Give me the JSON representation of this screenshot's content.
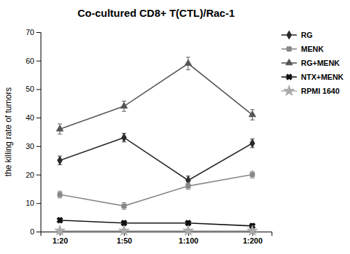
{
  "chart_data": {
    "type": "line",
    "title": "Co-cultured CD8+ T(CTL)/Rac-1",
    "ylabel": "the killing rate of tumors",
    "categories": [
      "1:20",
      "1:50",
      "1:100",
      "1:200"
    ],
    "ylim": [
      0,
      70
    ],
    "yticks": [
      0,
      10,
      20,
      30,
      40,
      50,
      60,
      70
    ],
    "grid": false,
    "legend": "right",
    "series": [
      {
        "name": "RG",
        "color": "#2a2a2a",
        "marker": "diamond",
        "line_style": "solid",
        "values": [
          25,
          33,
          18,
          31
        ],
        "errors": [
          1.5,
          1.5,
          1.5,
          1.5
        ]
      },
      {
        "name": "MENK",
        "color": "#888888",
        "marker": "square",
        "line_style": "solid",
        "values": [
          13,
          9,
          16,
          20
        ],
        "errors": [
          1.2,
          1.2,
          1.2,
          1.2
        ]
      },
      {
        "name": "RG+MENK",
        "color": "#555555",
        "marker": "triangle",
        "line_style": "solid",
        "values": [
          36,
          44,
          59,
          41
        ],
        "errors": [
          1.8,
          1.8,
          2.2,
          1.8
        ]
      },
      {
        "name": "NTX+MENK",
        "color": "#111111",
        "marker": "x",
        "line_style": "solid",
        "values": [
          4,
          3,
          3,
          2
        ],
        "errors": [
          0.8,
          0.8,
          0.8,
          0.8
        ]
      },
      {
        "name": "RPMI 1640",
        "color": "#aaaaaa",
        "marker": "star",
        "line_style": "solid",
        "values": [
          0.3,
          0.3,
          0.3,
          0.3
        ],
        "errors": [
          0.3,
          0.3,
          0.3,
          0.3
        ]
      }
    ]
  }
}
